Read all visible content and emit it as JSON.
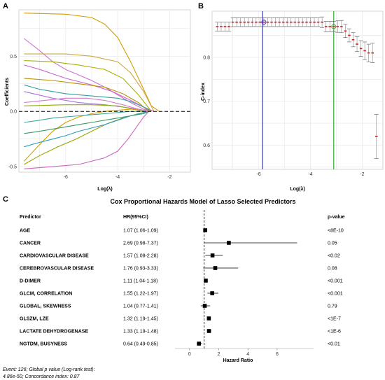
{
  "chart_data": [
    {
      "panel": "A",
      "type": "line",
      "title": "",
      "xlabel": "Log(λ)",
      "ylabel": "Coefficients",
      "xlim": [
        -7.8,
        -1.2
      ],
      "ylim": [
        -0.55,
        0.92
      ],
      "xticks": [
        -6,
        -4,
        -2
      ],
      "yticks": [
        -0.5,
        0.0,
        0.5
      ],
      "ytick_labels": [
        "-0.5",
        "0.0",
        "0.5"
      ],
      "series": [
        {
          "color": "#d29e00",
          "x": [
            -7.6,
            -6,
            -5,
            -4.5,
            -4,
            -3.5,
            -3.0,
            -2.7,
            -2.4
          ],
          "values": [
            0.89,
            0.88,
            0.85,
            0.79,
            0.67,
            0.45,
            0.2,
            0.05,
            0.0
          ]
        },
        {
          "color": "#d070d0",
          "x": [
            -7.6,
            -7,
            -6.5,
            -6,
            -5.5,
            -5,
            -4.5,
            -4,
            -3.5,
            -3,
            -2.7
          ],
          "values": [
            0.66,
            0.55,
            0.45,
            0.38,
            0.33,
            0.28,
            0.22,
            0.15,
            0.08,
            0.02,
            0.0
          ]
        },
        {
          "color": "#cfa640",
          "x": [
            -7.6,
            -6,
            -5,
            -4,
            -3.5,
            -3,
            -2.6
          ],
          "values": [
            0.52,
            0.52,
            0.5,
            0.45,
            0.35,
            0.18,
            0.0
          ]
        },
        {
          "color": "#a8b400",
          "x": [
            -7.6,
            -6.5,
            -5.5,
            -4.5,
            -3.8,
            -3.2,
            -2.7
          ],
          "values": [
            0.46,
            0.45,
            0.42,
            0.38,
            0.3,
            0.15,
            0.0
          ]
        },
        {
          "color": "#cc66cc",
          "x": [
            -7.6,
            -7,
            -6,
            -5,
            -4.2,
            -3.5,
            -3.0,
            -2.6
          ],
          "values": [
            0.42,
            0.38,
            0.3,
            0.24,
            0.18,
            0.1,
            0.04,
            0.0
          ]
        },
        {
          "color": "#b99300",
          "x": [
            -7.6,
            -6.5,
            -5.5,
            -4.5,
            -3.8,
            -3.2,
            -2.8
          ],
          "values": [
            0.3,
            0.28,
            0.25,
            0.22,
            0.16,
            0.08,
            0.0
          ]
        },
        {
          "color": "#33a0a0",
          "x": [
            -7.6,
            -7,
            -6,
            -5,
            -4,
            -3.5,
            -3,
            -2.7
          ],
          "values": [
            0.24,
            0.2,
            0.16,
            0.14,
            0.12,
            0.09,
            0.04,
            0.0
          ]
        },
        {
          "color": "#b06fdf",
          "x": [
            -7.6,
            -6.5,
            -5.5,
            -4.5,
            -3.8,
            -3.2,
            -2.8
          ],
          "values": [
            0.18,
            0.12,
            0.08,
            0.06,
            0.04,
            0.02,
            0.0
          ]
        },
        {
          "color": "#8cb000",
          "x": [
            -7.6,
            -6,
            -5,
            -4,
            -3.4,
            -3.0
          ],
          "values": [
            0.05,
            0.06,
            0.06,
            0.05,
            0.02,
            0.0
          ]
        },
        {
          "color": "#d4a000",
          "x": [
            -7.6,
            -7,
            -6.5,
            -6,
            -5.5,
            -5,
            -4.5,
            -4,
            -3.5,
            -3.0,
            -2.7
          ],
          "values": [
            -0.45,
            -0.3,
            -0.18,
            -0.1,
            -0.05,
            -0.02,
            0.0,
            0.01,
            0.02,
            0.01,
            0.0
          ]
        },
        {
          "color": "#9aa200",
          "x": [
            -7.6,
            -7,
            -6.3,
            -5.6,
            -5,
            -4.4,
            -3.8,
            -3.2,
            -2.8
          ],
          "values": [
            -0.48,
            -0.4,
            -0.32,
            -0.25,
            -0.18,
            -0.11,
            -0.06,
            -0.02,
            0.0
          ]
        },
        {
          "color": "#2d9bbd",
          "x": [
            -7.6,
            -7,
            -6.5,
            -6,
            -5.5,
            -5,
            -4.5,
            -4,
            -3.5,
            -3,
            -2.8
          ],
          "values": [
            -0.32,
            -0.28,
            -0.25,
            -0.22,
            -0.18,
            -0.15,
            -0.12,
            -0.08,
            -0.04,
            -0.01,
            0.0
          ]
        },
        {
          "color": "#3a9a6a",
          "x": [
            -7.6,
            -7,
            -6.5,
            -6,
            -5.5,
            -5,
            -4.5,
            -4,
            -3.5,
            -3.0,
            -2.8
          ],
          "values": [
            -0.2,
            -0.18,
            -0.16,
            -0.14,
            -0.12,
            -0.1,
            -0.08,
            -0.06,
            -0.04,
            -0.02,
            0.0
          ]
        },
        {
          "color": "#cc66bb",
          "x": [
            -7.6,
            -6.5,
            -5.5,
            -4.5,
            -4,
            -3.6,
            -3.3,
            -3.0,
            -2.8
          ],
          "values": [
            -0.52,
            -0.5,
            -0.48,
            -0.42,
            -0.36,
            -0.25,
            -0.15,
            -0.05,
            0.0
          ]
        },
        {
          "color": "#3fa8a0",
          "x": [
            -7.6,
            -7,
            -6.5,
            -6,
            -5.5,
            -5,
            -4.5,
            -4,
            -3.5,
            -3,
            -2.8
          ],
          "values": [
            -0.1,
            -0.08,
            -0.06,
            -0.05,
            -0.04,
            -0.03,
            -0.02,
            -0.01,
            0.0,
            0.0,
            0.0
          ]
        },
        {
          "color": "#d47acc",
          "x": [
            -7.6,
            -6.8,
            -6,
            -5.2,
            -4.5,
            -3.8,
            -3.2,
            -2.8
          ],
          "values": [
            0.08,
            0.1,
            0.12,
            0.12,
            0.1,
            0.06,
            0.02,
            0.0
          ]
        }
      ]
    },
    {
      "panel": "B",
      "type": "scatter",
      "title": "",
      "xlabel": "Log(λ)",
      "ylabel": "C-index",
      "xlim": [
        -7.8,
        -1.2
      ],
      "ylim": [
        0.545,
        0.905
      ],
      "xticks": [
        -6,
        -4,
        -2
      ],
      "yticks": [
        0.6,
        0.7,
        0.8
      ],
      "ytick_labels": [
        "0.6",
        "0.7",
        "0.8"
      ],
      "vlines": [
        {
          "x": -5.85,
          "color": "#3333cc"
        },
        {
          "x": -3.1,
          "color": "#33aa33"
        }
      ],
      "x": [
        -7.6,
        -7.45,
        -7.3,
        -7.15,
        -7.0,
        -6.85,
        -6.7,
        -6.55,
        -6.4,
        -6.25,
        -6.1,
        -5.95,
        -5.8,
        -5.65,
        -5.5,
        -5.35,
        -5.2,
        -5.05,
        -4.9,
        -4.75,
        -4.6,
        -4.45,
        -4.3,
        -4.15,
        -4.0,
        -3.85,
        -3.7,
        -3.55,
        -3.4,
        -3.25,
        -3.1,
        -2.95,
        -2.8,
        -2.65,
        -2.5,
        -2.35,
        -2.2,
        -2.05,
        -1.9,
        -1.75,
        -1.6,
        -1.45
      ],
      "values": [
        0.87,
        0.87,
        0.87,
        0.87,
        0.88,
        0.88,
        0.88,
        0.88,
        0.88,
        0.88,
        0.88,
        0.88,
        0.88,
        0.88,
        0.88,
        0.88,
        0.88,
        0.88,
        0.88,
        0.88,
        0.88,
        0.88,
        0.88,
        0.88,
        0.88,
        0.88,
        0.88,
        0.88,
        0.87,
        0.87,
        0.87,
        0.87,
        0.87,
        0.86,
        0.85,
        0.84,
        0.83,
        0.82,
        0.815,
        0.81,
        0.81,
        0.62
      ],
      "err": [
        0.01,
        0.01,
        0.01,
        0.01,
        0.01,
        0.01,
        0.01,
        0.01,
        0.01,
        0.01,
        0.01,
        0.01,
        0.01,
        0.01,
        0.01,
        0.01,
        0.01,
        0.01,
        0.01,
        0.01,
        0.01,
        0.01,
        0.01,
        0.01,
        0.01,
        0.01,
        0.01,
        0.012,
        0.012,
        0.012,
        0.012,
        0.013,
        0.014,
        0.015,
        0.015,
        0.016,
        0.017,
        0.018,
        0.02,
        0.02,
        0.022,
        0.05
      ]
    },
    {
      "panel": "C",
      "type": "forest",
      "title": "Cox Proportional Hazards Model of Lasso Selected Predictors",
      "col_predictor": "Predictor",
      "col_hr": "HR(95%CI)",
      "col_p": "p-value",
      "xlabel": "Hazard Ratio",
      "xlim": [
        -1,
        8.5
      ],
      "xticks": [
        0,
        2,
        4,
        6
      ],
      "ref_line": 1,
      "rows": [
        {
          "predictor": "AGE",
          "hr_text": "1.07 (1.06-1.09)",
          "p": "<8E-10",
          "hr": 1.07,
          "lo": 1.06,
          "hi": 1.09
        },
        {
          "predictor": "CANCER",
          "hr_text": "2.69 (0.98-7.37)",
          "p": "0.05",
          "hr": 2.69,
          "lo": 0.98,
          "hi": 7.37
        },
        {
          "predictor": "CARDIOVASCULAR DISEASE",
          "hr_text": "1.57 (1.08-2.28)",
          "p": "<0.02",
          "hr": 1.57,
          "lo": 1.08,
          "hi": 2.28
        },
        {
          "predictor": "CEREBROVASCULAR DISEASE",
          "hr_text": "1.76 (0.93-3.33)",
          "p": "0.08",
          "hr": 1.76,
          "lo": 0.93,
          "hi": 3.33
        },
        {
          "predictor": "D-DIMER",
          "hr_text": "1.11 (1.04-1.18)",
          "p": "<0.001",
          "hr": 1.11,
          "lo": 1.04,
          "hi": 1.18
        },
        {
          "predictor": "GLCM, CORRELATION",
          "hr_text": "1.55 (1.22-1.97)",
          "p": "<0.001",
          "hr": 1.55,
          "lo": 1.22,
          "hi": 1.97
        },
        {
          "predictor": "GLOBAL, SKEWNESS",
          "hr_text": "1.04 (0.77-1.41)",
          "p": "0.79",
          "hr": 1.04,
          "lo": 0.77,
          "hi": 1.41
        },
        {
          "predictor": "GLSZM, LZE",
          "hr_text": "1.32 (1.19-1.45)",
          "p": "<1E-7",
          "hr": 1.32,
          "lo": 1.19,
          "hi": 1.45
        },
        {
          "predictor": "LACTATE DEHYDROGENASE",
          "hr_text": "1.33 (1.19-1.48)",
          "p": "<1E-6",
          "hr": 1.33,
          "lo": 1.19,
          "hi": 1.48
        },
        {
          "predictor": "NGTDM, BUSYNESS",
          "hr_text": "0.64 (0.49-0.85)",
          "p": "<0.01",
          "hr": 0.64,
          "lo": 0.49,
          "hi": 0.85
        }
      ],
      "caption_line1": "Event: 126; Global p value (Log-rank test):",
      "caption_line2": "4.86e-50; Concordance index: 0.87"
    }
  ],
  "panel_labels": {
    "a": "A",
    "b": "B",
    "c": "C"
  },
  "colors": {
    "grid": "#e6e6e6",
    "err_box": "#555555",
    "point": "#cc2222",
    "marker": "#000000"
  }
}
